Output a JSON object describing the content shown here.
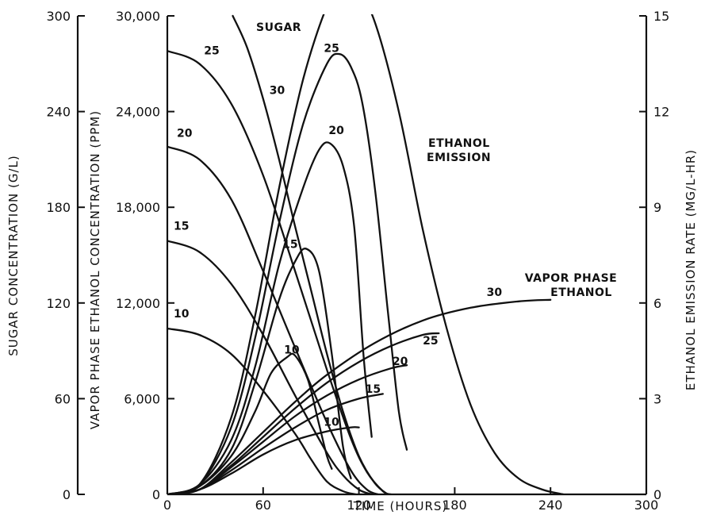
{
  "chart_data": {
    "type": "line",
    "xlabel": "TIME (HOURS)",
    "xlim": [
      0,
      300
    ],
    "xticks": [
      "0",
      "60",
      "120",
      "180",
      "240",
      "300"
    ],
    "y_axes": {
      "sugar": {
        "label": "SUGAR CONCENTRATION (G/L)",
        "range": [
          0,
          300
        ],
        "ticks": [
          "0",
          "60",
          "120",
          "180",
          "240",
          "300"
        ]
      },
      "vapor": {
        "label": "VAPOR PHASE ETHANOL CONCENTRATION (PPM)",
        "range": [
          0,
          30000
        ],
        "ticks": [
          "0",
          "6,000",
          "12,000",
          "18,000",
          "24,000",
          "30,000"
        ]
      },
      "emission": {
        "label": "ETHANOL EMISSION RATE (MG/L-HR)",
        "range": [
          0,
          15
        ],
        "ticks": [
          "0",
          "3",
          "6",
          "9",
          "12",
          "15"
        ]
      }
    },
    "annotations": {
      "sugar": "SUGAR",
      "emission_line1": "ETHANOL",
      "emission_line2": "EMISSION",
      "vapor_line1": "VAPOR PHASE",
      "vapor_line2": "ETHANOL"
    },
    "series": [
      {
        "group": "sugar",
        "axis": "sugar",
        "label": "10",
        "points": [
          [
            0,
            104
          ],
          [
            20,
            100
          ],
          [
            40,
            88
          ],
          [
            60,
            65
          ],
          [
            80,
            38
          ],
          [
            90,
            22
          ],
          [
            100,
            8
          ],
          [
            110,
            2
          ],
          [
            118,
            0
          ]
        ]
      },
      {
        "group": "sugar",
        "axis": "sugar",
        "label": "15",
        "points": [
          [
            0,
            159
          ],
          [
            20,
            152
          ],
          [
            40,
            132
          ],
          [
            60,
            100
          ],
          [
            80,
            62
          ],
          [
            100,
            26
          ],
          [
            110,
            12
          ],
          [
            120,
            3
          ],
          [
            128,
            0
          ]
        ]
      },
      {
        "group": "sugar",
        "axis": "sugar",
        "label": "20",
        "points": [
          [
            0,
            218
          ],
          [
            20,
            210
          ],
          [
            40,
            185
          ],
          [
            60,
            140
          ],
          [
            80,
            92
          ],
          [
            100,
            45
          ],
          [
            115,
            15
          ],
          [
            125,
            3
          ],
          [
            132,
            0
          ]
        ]
      },
      {
        "group": "sugar",
        "axis": "sugar",
        "label": "25",
        "points": [
          [
            0,
            278
          ],
          [
            20,
            270
          ],
          [
            40,
            245
          ],
          [
            60,
            200
          ],
          [
            80,
            140
          ],
          [
            100,
            78
          ],
          [
            115,
            35
          ],
          [
            125,
            14
          ],
          [
            135,
            2
          ],
          [
            140,
            0
          ]
        ]
      },
      {
        "group": "sugar",
        "axis": "sugar",
        "label": "30",
        "points": [
          [
            41,
            300
          ],
          [
            50,
            280
          ],
          [
            60,
            248
          ],
          [
            70,
            210
          ],
          [
            80,
            168
          ],
          [
            90,
            128
          ],
          [
            100,
            88
          ],
          [
            110,
            52
          ],
          [
            120,
            24
          ],
          [
            130,
            7
          ],
          [
            138,
            0
          ]
        ]
      },
      {
        "group": "emission",
        "axis": "emission",
        "label": "10",
        "points": [
          [
            0,
            0
          ],
          [
            20,
            0.25
          ],
          [
            40,
            1.2
          ],
          [
            55,
            2.6
          ],
          [
            65,
            3.8
          ],
          [
            75,
            4.3
          ],
          [
            80,
            4.35
          ],
          [
            88,
            3.6
          ],
          [
            95,
            2.2
          ],
          [
            100,
            1.2
          ],
          [
            103,
            0.8
          ]
        ]
      },
      {
        "group": "emission",
        "axis": "emission",
        "label": "15",
        "points": [
          [
            0,
            0
          ],
          [
            20,
            0.25
          ],
          [
            40,
            1.4
          ],
          [
            55,
            3.5
          ],
          [
            70,
            6.1
          ],
          [
            80,
            7.3
          ],
          [
            87,
            7.7
          ],
          [
            95,
            7.0
          ],
          [
            103,
            4.4
          ],
          [
            110,
            1.5
          ],
          [
            115,
            0.5
          ]
        ]
      },
      {
        "group": "emission",
        "axis": "emission",
        "label": "20",
        "points": [
          [
            0,
            0
          ],
          [
            20,
            0.3
          ],
          [
            40,
            1.7
          ],
          [
            55,
            4.0
          ],
          [
            70,
            7.2
          ],
          [
            85,
            9.6
          ],
          [
            95,
            10.8
          ],
          [
            102,
            11.0
          ],
          [
            110,
            10.3
          ],
          [
            117,
            8.4
          ],
          [
            123,
            4.3
          ],
          [
            128,
            1.8
          ]
        ]
      },
      {
        "group": "emission",
        "axis": "emission",
        "label": "25",
        "points": [
          [
            0,
            0
          ],
          [
            20,
            0.3
          ],
          [
            40,
            2.1
          ],
          [
            55,
            4.9
          ],
          [
            70,
            8.5
          ],
          [
            85,
            11.6
          ],
          [
            100,
            13.5
          ],
          [
            108,
            13.8
          ],
          [
            115,
            13.4
          ],
          [
            122,
            12.3
          ],
          [
            130,
            9.6
          ],
          [
            138,
            5.8
          ],
          [
            145,
            2.6
          ],
          [
            150,
            1.4
          ]
        ]
      },
      {
        "group": "emission",
        "axis": "emission",
        "label": "30",
        "points": [
          [
            0,
            0
          ],
          [
            20,
            0.3
          ],
          [
            40,
            2.4
          ],
          [
            55,
            5.6
          ],
          [
            70,
            9.6
          ],
          [
            85,
            13.0
          ],
          [
            100,
            15.3
          ],
          [
            110,
            16.0
          ],
          [
            118,
            15.9
          ],
          [
            130,
            14.8
          ],
          [
            145,
            12.0
          ],
          [
            160,
            8.3
          ],
          [
            175,
            5.2
          ],
          [
            190,
            2.8
          ],
          [
            205,
            1.3
          ],
          [
            220,
            0.5
          ],
          [
            235,
            0.15
          ],
          [
            248,
            0
          ]
        ]
      },
      {
        "group": "vapor",
        "axis": "vapor",
        "label": "10",
        "points": [
          [
            0,
            0
          ],
          [
            20,
            300
          ],
          [
            40,
            1300
          ],
          [
            60,
            2500
          ],
          [
            80,
            3400
          ],
          [
            100,
            3950
          ],
          [
            115,
            4200
          ],
          [
            120,
            4200
          ]
        ]
      },
      {
        "group": "vapor",
        "axis": "vapor",
        "label": "15",
        "points": [
          [
            0,
            0
          ],
          [
            20,
            300
          ],
          [
            40,
            1500
          ],
          [
            60,
            2900
          ],
          [
            80,
            4200
          ],
          [
            100,
            5300
          ],
          [
            120,
            6000
          ],
          [
            135,
            6300
          ]
        ]
      },
      {
        "group": "vapor",
        "axis": "vapor",
        "label": "20",
        "points": [
          [
            0,
            0
          ],
          [
            20,
            300
          ],
          [
            40,
            1700
          ],
          [
            60,
            3300
          ],
          [
            80,
            4900
          ],
          [
            100,
            6200
          ],
          [
            120,
            7200
          ],
          [
            140,
            7900
          ],
          [
            150,
            8100
          ]
        ]
      },
      {
        "group": "vapor",
        "axis": "vapor",
        "label": "25",
        "points": [
          [
            0,
            0
          ],
          [
            20,
            300
          ],
          [
            40,
            1800
          ],
          [
            60,
            3600
          ],
          [
            80,
            5400
          ],
          [
            100,
            7000
          ],
          [
            120,
            8300
          ],
          [
            140,
            9300
          ],
          [
            160,
            10000
          ],
          [
            170,
            10100
          ]
        ]
      },
      {
        "group": "vapor",
        "axis": "vapor",
        "label": "30",
        "points": [
          [
            0,
            0
          ],
          [
            20,
            300
          ],
          [
            40,
            2000
          ],
          [
            60,
            3900
          ],
          [
            80,
            5800
          ],
          [
            100,
            7500
          ],
          [
            130,
            9500
          ],
          [
            160,
            10900
          ],
          [
            190,
            11700
          ],
          [
            220,
            12100
          ],
          [
            240,
            12200
          ]
        ]
      }
    ]
  }
}
